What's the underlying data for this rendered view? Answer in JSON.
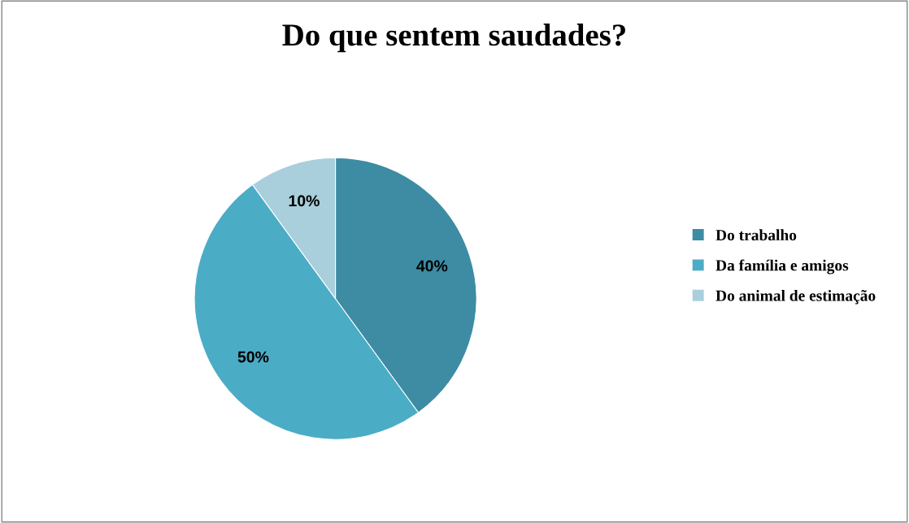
{
  "chart_data": {
    "type": "pie",
    "title": "Do que sentem saudades?",
    "categories": [
      "Do trabalho",
      "Da família e amigos",
      "Do animal de estimação"
    ],
    "values": [
      40,
      50,
      10
    ],
    "value_labels": [
      "40%",
      "50%",
      "10%"
    ],
    "colors": [
      "#3d8ca3",
      "#4bacc6",
      "#a9cfdc"
    ],
    "legend": "right"
  }
}
